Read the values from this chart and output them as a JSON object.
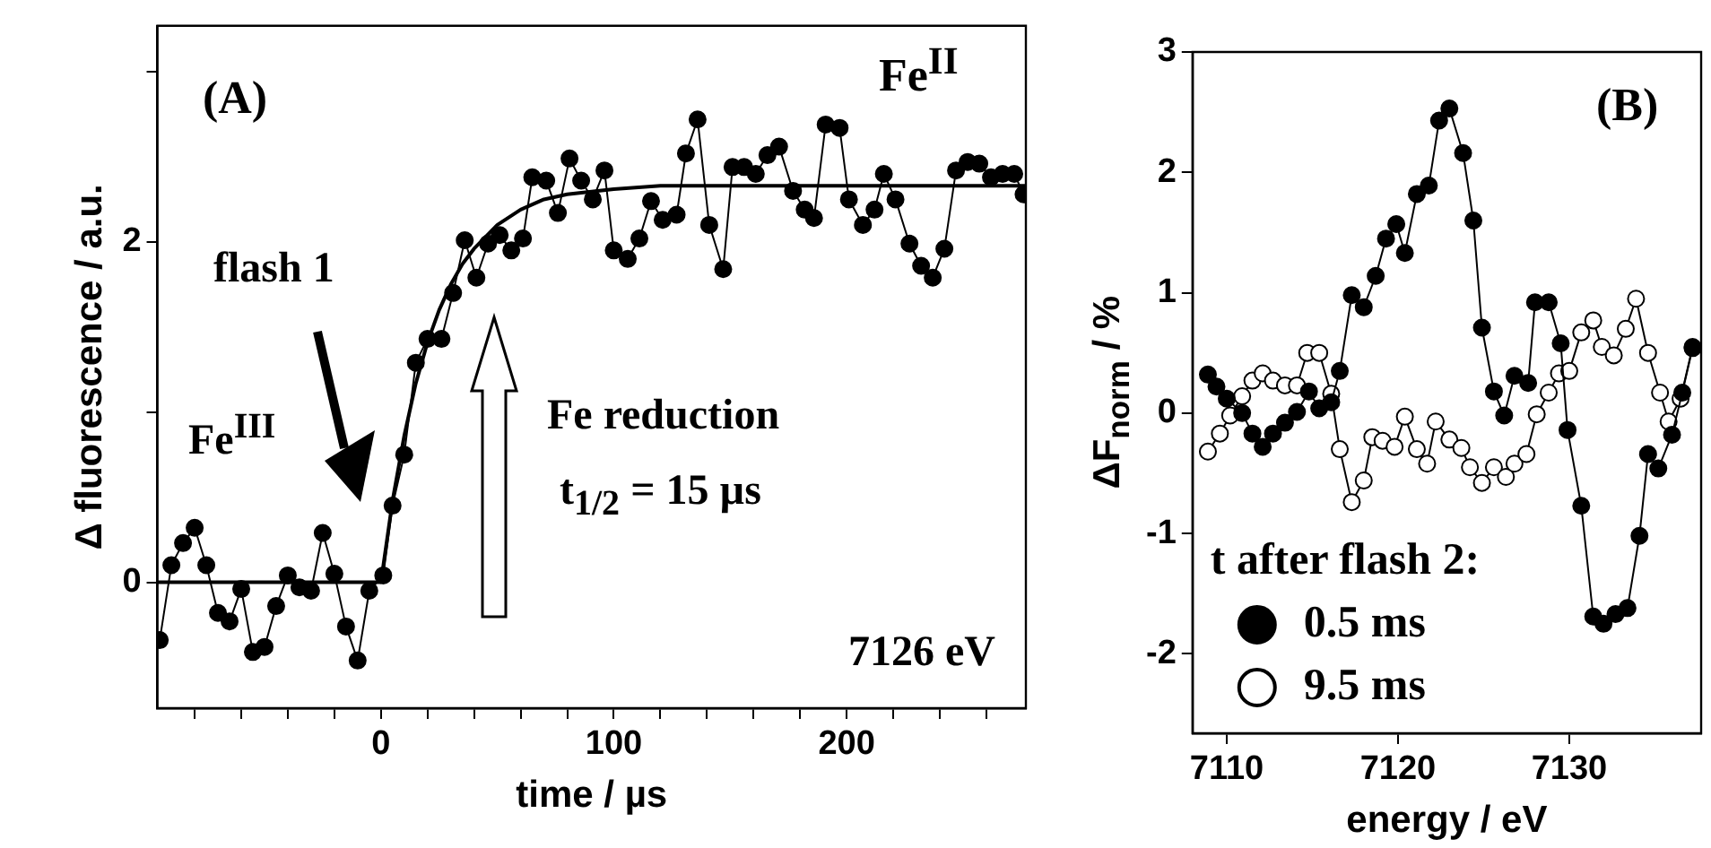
{
  "chart_data": [
    {
      "type": "line",
      "xlabel": "time / µs",
      "ylabel": "Δ fluorescence / a.u.",
      "xlim": [
        -96,
        277
      ],
      "ylim": [
        -0.74,
        3.27
      ],
      "marker": "circle",
      "xticks": [
        {
          "value": -80,
          "label": null
        },
        {
          "value": -60,
          "label": null
        },
        {
          "value": -40,
          "label": null
        },
        {
          "value": -20,
          "label": null
        },
        0,
        {
          "value": 20,
          "label": null
        },
        {
          "value": 40,
          "label": null
        },
        {
          "value": 60,
          "label": null
        },
        {
          "value": 80,
          "label": null
        },
        100,
        {
          "value": 120,
          "label": null
        },
        {
          "value": 140,
          "label": null
        },
        {
          "value": 160,
          "label": null
        },
        {
          "value": 180,
          "label": null
        },
        200,
        {
          "value": 220,
          "label": null
        },
        {
          "value": 240,
          "label": null
        },
        {
          "value": 260,
          "label": null
        }
      ],
      "yticks": [
        0,
        {
          "value": 1,
          "label": null
        },
        2,
        {
          "value": 3,
          "label": null
        }
      ],
      "annotations": [
        "(A)",
        "Fe$^{II}$",
        "flash 1",
        "Fe$^{III}$",
        "Fe reduction",
        "t$_{1/2}$ = 15 µs",
        "7126 eV"
      ],
      "series": [
        {
          "color": "#000000",
          "x": [
            -95,
            -90,
            -85,
            -80,
            -75,
            -70,
            -65,
            -60,
            -55,
            -50,
            -45,
            -40,
            -35,
            -30,
            -25,
            -20,
            -15,
            -10,
            -5,
            1,
            5,
            10,
            15,
            20,
            26,
            31,
            36,
            41,
            46,
            51,
            56,
            61,
            65,
            71,
            76,
            81,
            86,
            91,
            96,
            100,
            106,
            111,
            116,
            121,
            127,
            131,
            136,
            141,
            147,
            151,
            156,
            161,
            166,
            171,
            177,
            182,
            186,
            191,
            197,
            201,
            207,
            212,
            216,
            221,
            227,
            232,
            237,
            242,
            247,
            252,
            257,
            262,
            267,
            272,
            276
          ],
          "values": [
            -0.34,
            0.1,
            0.23,
            0.32,
            0.1,
            -0.18,
            -0.23,
            -0.04,
            -0.41,
            -0.38,
            -0.14,
            0.04,
            -0.03,
            -0.05,
            0.29,
            0.05,
            -0.26,
            -0.46,
            -0.05,
            0.04,
            0.45,
            0.75,
            1.29,
            1.43,
            1.43,
            1.7,
            2.01,
            1.79,
            1.99,
            2.04,
            1.95,
            2.02,
            2.38,
            2.36,
            2.17,
            2.49,
            2.36,
            2.25,
            2.42,
            1.95,
            1.9,
            2.02,
            2.24,
            2.13,
            2.16,
            2.52,
            2.72,
            2.1,
            1.84,
            2.44,
            2.44,
            2.4,
            2.51,
            2.56,
            2.3,
            2.19,
            2.14,
            2.69,
            2.67,
            2.25,
            2.1,
            2.19,
            2.4,
            2.25,
            1.99,
            1.86,
            1.79,
            1.96,
            2.42,
            2.47,
            2.46,
            2.38,
            2.4,
            2.4,
            2.28
          ]
        },
        {
          "color": "#000000",
          "marker": "none",
          "x": [
            -96,
            0,
            5,
            10,
            15,
            20,
            25,
            30,
            35,
            40,
            50,
            60,
            70,
            80,
            100,
            120,
            150,
            200,
            277
          ],
          "values": [
            0,
            0,
            0.48,
            0.86,
            1.17,
            1.41,
            1.6,
            1.75,
            1.87,
            1.96,
            2.1,
            2.19,
            2.25,
            2.28,
            2.31,
            2.33,
            2.33,
            2.33,
            2.33
          ]
        }
      ]
    },
    {
      "type": "line",
      "xlabel": "energy / eV",
      "ylabel": "ΔF$_{norm}$ / %",
      "legend_title": "t after flash 2:",
      "legend": "bottom left",
      "marker": "circle",
      "xlim": [
        7108,
        7137.7
      ],
      "ylim": [
        -2.66,
        3
      ],
      "xticks": [
        7110,
        7120,
        7130
      ],
      "yticks": [
        -2,
        -1,
        0,
        1,
        2,
        3
      ],
      "annotations": [
        "(B)"
      ],
      "series": [
        {
          "name": "0.5 ms",
          "color": "#000000",
          "x": [
            7108.9,
            7109.4,
            7110.0,
            7110.9,
            7111.5,
            7112.1,
            7112.7,
            7113.4,
            7114.1,
            7114.8,
            7115.4,
            7116.1,
            7116.6,
            7117.3,
            7118.0,
            7118.7,
            7119.3,
            7119.9,
            7120.4,
            7121.1,
            7121.8,
            7122.4,
            7123.0,
            7123.8,
            7124.4,
            7124.9,
            7125.6,
            7126.2,
            7126.8,
            7127.6,
            7128.0,
            7128.8,
            7129.5,
            7129.9,
            7130.7,
            7131.4,
            7132.0,
            7132.7,
            7133.4,
            7134.1,
            7134.6,
            7135.2,
            7136.0,
            7136.6,
            7137.2
          ],
          "values": [
            0.32,
            0.22,
            0.12,
            0.0,
            -0.17,
            -0.28,
            -0.17,
            -0.08,
            0.01,
            0.18,
            0.04,
            0.09,
            0.35,
            0.98,
            0.88,
            1.14,
            1.45,
            1.57,
            1.33,
            1.82,
            1.89,
            2.43,
            2.53,
            2.16,
            1.6,
            0.71,
            0.18,
            -0.02,
            0.31,
            0.25,
            0.92,
            0.92,
            0.58,
            -0.14,
            -0.77,
            -1.69,
            -1.75,
            -1.67,
            -1.62,
            -1.02,
            -0.34,
            -0.46,
            -0.18,
            0.17,
            0.54
          ]
        },
        {
          "name": "9.5 ms",
          "color": "#000000",
          "x": [
            7108.9,
            7109.6,
            7110.2,
            7110.9,
            7111.5,
            7112.1,
            7112.7,
            7113.4,
            7114.1,
            7114.7,
            7115.4,
            7116.1,
            7116.6,
            7117.3,
            7118.0,
            7118.5,
            7119.1,
            7119.8,
            7120.4,
            7121.1,
            7121.7,
            7122.2,
            7123.0,
            7123.7,
            7124.2,
            7124.9,
            7125.6,
            7126.3,
            7126.8,
            7127.5,
            7128.1,
            7128.8,
            7129.4,
            7130.0,
            7130.7,
            7131.4,
            7131.9,
            7132.6,
            7133.3,
            7133.9,
            7134.6,
            7135.3,
            7135.8,
            7136.5,
            7137.2
          ],
          "values": [
            -0.32,
            -0.17,
            -0.02,
            0.14,
            0.27,
            0.33,
            0.27,
            0.23,
            0.23,
            0.5,
            0.5,
            0.16,
            -0.3,
            -0.74,
            -0.56,
            -0.2,
            -0.23,
            -0.28,
            -0.03,
            -0.3,
            -0.42,
            -0.07,
            -0.22,
            -0.29,
            -0.45,
            -0.58,
            -0.45,
            -0.53,
            -0.42,
            -0.34,
            -0.01,
            0.17,
            0.33,
            0.35,
            0.67,
            0.77,
            0.55,
            0.48,
            0.7,
            0.95,
            0.5,
            0.17,
            -0.07,
            0.12,
            0.55
          ]
        }
      ]
    }
  ]
}
